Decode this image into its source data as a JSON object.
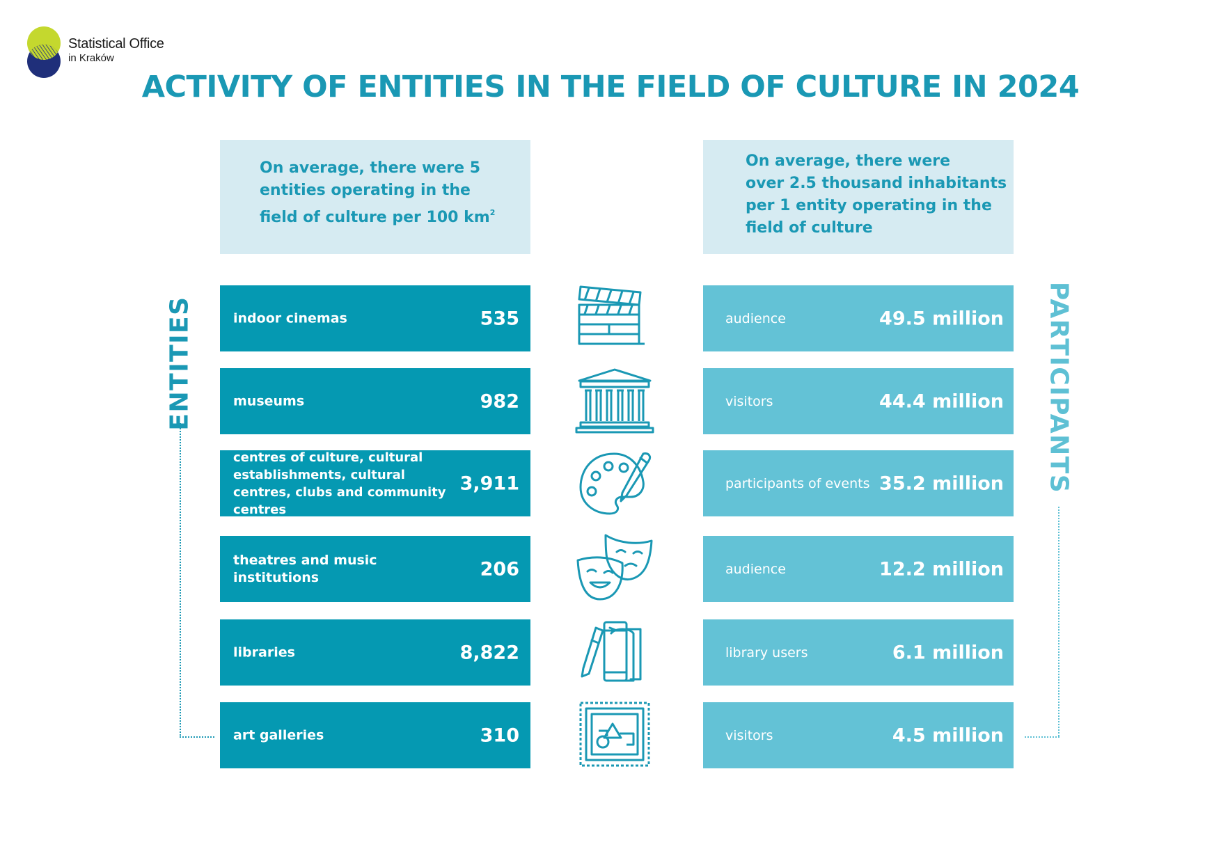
{
  "logo": {
    "line1": "Statistical Office",
    "line2": "in Kraków"
  },
  "title": "ACTIVITY OF ENTITIES IN THE FIELD OF CULTURE IN 2024",
  "info_left": {
    "line1": "On average, there were 5",
    "line2": "entities operating in the",
    "line3": "field of culture per 100 km",
    "sup": "2"
  },
  "info_right": {
    "line1": "On average, there were",
    "line2": "over 2.5 thousand inhabitants",
    "line3": "per 1 entity operating in the",
    "line4": "field of culture"
  },
  "side_labels": {
    "left": "ENTITIES",
    "right": "PARTICIPANTS"
  },
  "entities": [
    {
      "label": "indoor cinemas",
      "value": "535"
    },
    {
      "label": "museums",
      "value": "982"
    },
    {
      "label": "centres of culture, cultural establishments, cultural centres, clubs and community centres",
      "value": "3,911"
    },
    {
      "label": "theatres and music institutions",
      "value": "206"
    },
    {
      "label": "libraries",
      "value": "8,822"
    },
    {
      "label": "art galleries",
      "value": "310"
    }
  ],
  "participants": [
    {
      "label": "audience",
      "value": "49.5 million"
    },
    {
      "label": "visitors",
      "value": "44.4 million"
    },
    {
      "label": "participants of events",
      "value": "35.2 million"
    },
    {
      "label": "audience",
      "value": "12.2 million"
    },
    {
      "label": "library users",
      "value": "6.1 million"
    },
    {
      "label": "visitors",
      "value": "4.5 million"
    }
  ],
  "icons": [
    "clapperboard-icon",
    "museum-icon",
    "palette-icon",
    "theatre-masks-icon",
    "books-icon",
    "painting-frame-icon"
  ],
  "colors": {
    "title": "#1a98b4",
    "entity_box": "#0599b2",
    "participant_box": "#63c2d6",
    "info_box": "#d6ebf2",
    "logo_green": "#c4d82e",
    "logo_navy": "#1f2f7a"
  }
}
